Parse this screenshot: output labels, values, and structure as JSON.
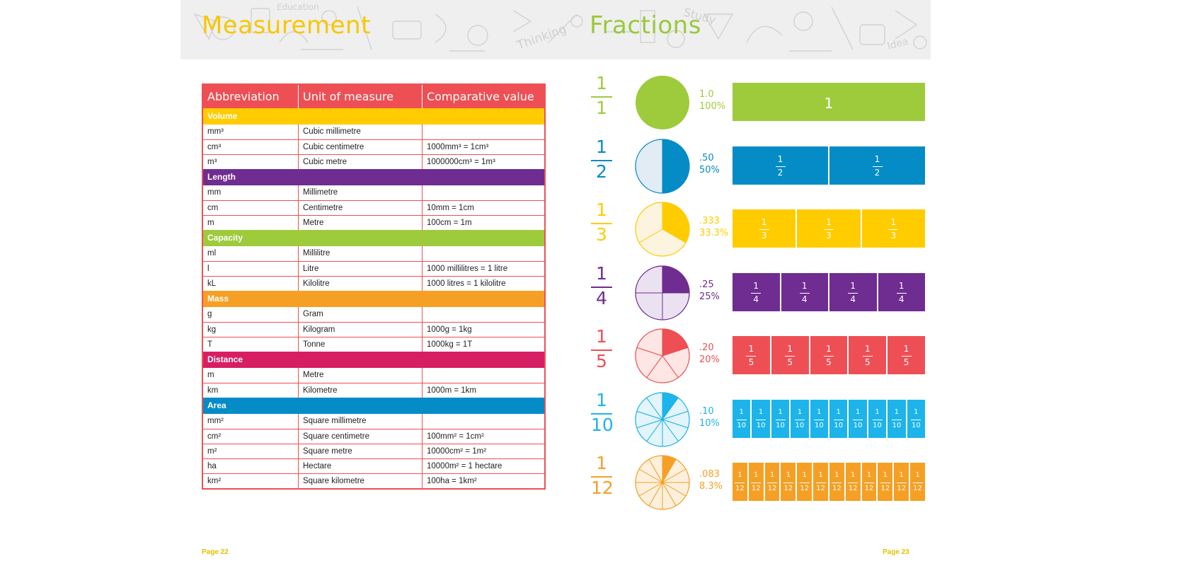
{
  "left_page": {
    "title": "Measurement",
    "page_label": "Page 22",
    "table": {
      "headers": [
        "Abbreviation",
        "Unit of measure",
        "Comparative value"
      ],
      "sections": [
        {
          "name": "Volume",
          "color": "#ffcc00",
          "rows": [
            [
              "mm³",
              "Cubic millimetre",
              ""
            ],
            [
              "cm³",
              "Cubic centimetre",
              "1000mm³ = 1cm³"
            ],
            [
              "m³",
              "Cubic metre",
              "1000000cm³ = 1m³"
            ]
          ]
        },
        {
          "name": "Length",
          "color": "#6f2c91",
          "rows": [
            [
              "mm",
              "Millimetre",
              ""
            ],
            [
              "cm",
              "Centimetre",
              "10mm = 1cm"
            ],
            [
              "m",
              "Metre",
              "100cm = 1m"
            ]
          ]
        },
        {
          "name": "Capacity",
          "color": "#9dcb3c",
          "rows": [
            [
              "ml",
              "Millilitre",
              ""
            ],
            [
              "l",
              "Litre",
              "1000 millilitres = 1 litre"
            ],
            [
              "kL",
              "Kilolitre",
              "1000 litres = 1 kilolitre"
            ]
          ]
        },
        {
          "name": "Mass",
          "color": "#f5a024",
          "rows": [
            [
              "g",
              "Gram",
              ""
            ],
            [
              "kg",
              "Kilogram",
              "1000g = 1kg"
            ],
            [
              "T",
              "Tonne",
              "1000kg = 1T"
            ]
          ]
        },
        {
          "name": "Distance",
          "color": "#d81e63",
          "rows": [
            [
              "m",
              "Metre",
              ""
            ],
            [
              "km",
              "Kilometre",
              "1000m = 1km"
            ]
          ]
        },
        {
          "name": "Area",
          "color": "#058cc6",
          "rows": [
            [
              "mm²",
              "Square millimetre",
              ""
            ],
            [
              "cm²",
              "Square centimetre",
              "100mm² = 1cm²"
            ],
            [
              "m²",
              "Square metre",
              "10000cm² = 1m²"
            ],
            [
              "ha",
              "Hectare",
              "10000m² = 1 hectare"
            ],
            [
              "km²",
              "Square kilometre",
              "100ha = 1km²"
            ]
          ]
        }
      ]
    }
  },
  "right_page": {
    "title": "Fractions",
    "page_label": "Page 23",
    "fractions": [
      {
        "numerator": "1",
        "denominator": "1",
        "decimal": "1.0",
        "percent": "100%",
        "parts": 1,
        "color": "#9dcb3c",
        "light": "#e8f3d4"
      },
      {
        "numerator": "1",
        "denominator": "2",
        "decimal": ".50",
        "percent": "50%",
        "parts": 2,
        "color": "#058cc6",
        "light": "#e2ecf5"
      },
      {
        "numerator": "1",
        "denominator": "3",
        "decimal": ".333",
        "percent": "33.3%",
        "parts": 3,
        "color": "#ffcc00",
        "light": "#fdf4df"
      },
      {
        "numerator": "1",
        "denominator": "4",
        "decimal": ".25",
        "percent": "25%",
        "parts": 4,
        "color": "#6f2c91",
        "light": "#ebe2f1"
      },
      {
        "numerator": "1",
        "denominator": "5",
        "decimal": ".20",
        "percent": "20%",
        "parts": 5,
        "color": "#ee4f55",
        "light": "#fde6e4"
      },
      {
        "numerator": "1",
        "denominator": "10",
        "decimal": ".10",
        "percent": "10%",
        "parts": 10,
        "color": "#1cb4ea",
        "light": "#e3f4fb"
      },
      {
        "numerator": "1",
        "denominator": "12",
        "decimal": ".083",
        "percent": "8.3%",
        "parts": 12,
        "color": "#f5a024",
        "light": "#fef0dd"
      }
    ]
  },
  "banner": {
    "doodle_words": [
      "Education",
      "Thinking",
      "Study",
      "Idea"
    ]
  }
}
